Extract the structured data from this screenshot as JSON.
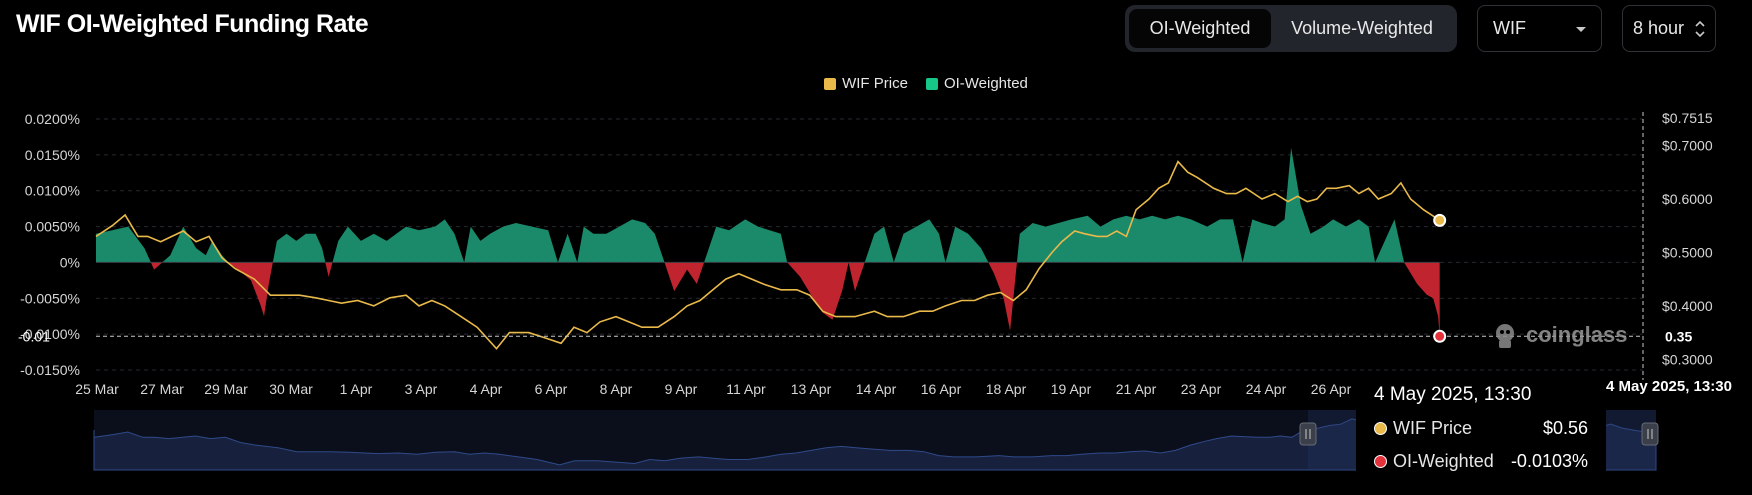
{
  "header": {
    "title": "WIF OI-Weighted Funding Rate",
    "weight_tabs": [
      "OI-Weighted",
      "Volume-Weighted"
    ],
    "active_tab": "OI-Weighted",
    "coin_select": "WIF",
    "interval_select": "8 hour"
  },
  "colors": {
    "price": "#e9b949",
    "positive": "#1a8a6b",
    "negative": "#c0252f",
    "highlight_red": "#e4323d"
  },
  "tooltip": {
    "date": "4 May 2025, 13:30",
    "rows": [
      {
        "label": "WIF Price",
        "value": "$0.56"
      },
      {
        "label": "OI-Weighted",
        "value": "-0.0103%"
      }
    ]
  },
  "crosshair": {
    "x_label": "4 May 2025, 13:30",
    "y_left_label": "-0.01",
    "y_right_label": "0.35"
  },
  "brand": "coinglass",
  "chart_data": {
    "type": "area",
    "title": "WIF OI-Weighted Funding Rate",
    "legend": [
      "WIF Price",
      "OI-Weighted"
    ],
    "legend_position": "top-center",
    "grid": true,
    "categories": [
      "25 Mar",
      "27 Mar",
      "29 Mar",
      "30 Mar",
      "1 Apr",
      "3 Apr",
      "4 Apr",
      "6 Apr",
      "8 Apr",
      "9 Apr",
      "11 Apr",
      "13 Apr",
      "14 Apr",
      "16 Apr",
      "18 Apr",
      "19 Apr",
      "21 Apr",
      "23 Apr",
      "24 Apr",
      "26 Apr"
    ],
    "y_left": {
      "ticks": [
        "0.0200%",
        "0.0150%",
        "0.0100%",
        "0.0050%",
        "0%",
        "-0.0050%",
        "-0.0100%",
        "-0.0150%"
      ],
      "range": [
        -0.015,
        0.02
      ]
    },
    "y_right": {
      "ticks": [
        "$0.7515",
        "$0.7000",
        "$0.6000",
        "$0.5000",
        "$0.4000",
        "$0.3000"
      ],
      "range": [
        0.28,
        0.7515
      ]
    },
    "series": [
      {
        "name": "OI-Weighted",
        "unit": "%",
        "axis": "left",
        "points": [
          [
            0,
            0.004
          ],
          [
            0.5,
            0.0045
          ],
          [
            1,
            0.005
          ],
          [
            1.5,
            0.002
          ],
          [
            1.8,
            -0.001
          ],
          [
            2.3,
            0.001
          ],
          [
            2.7,
            0.005
          ],
          [
            3.1,
            0.002
          ],
          [
            3.4,
            0.001
          ],
          [
            3.6,
            0.003
          ],
          [
            3.9,
            0.001
          ],
          [
            4.1,
            0.0
          ],
          [
            4.4,
            -0.001
          ],
          [
            4.8,
            -0.0025
          ],
          [
            5.1,
            -0.006
          ],
          [
            5.2,
            -0.0075
          ],
          [
            5.35,
            -0.003
          ],
          [
            5.6,
            0.003
          ],
          [
            5.9,
            0.004
          ],
          [
            6.2,
            0.003
          ],
          [
            6.5,
            0.004
          ],
          [
            6.8,
            0.004
          ],
          [
            7.0,
            0.002
          ],
          [
            7.2,
            -0.002
          ],
          [
            7.5,
            0.003
          ],
          [
            7.8,
            0.005
          ],
          [
            8.2,
            0.003
          ],
          [
            8.6,
            0.004
          ],
          [
            9.0,
            0.003
          ],
          [
            9.3,
            0.004
          ],
          [
            9.6,
            0.005
          ],
          [
            10.0,
            0.0045
          ],
          [
            10.5,
            0.005
          ],
          [
            10.8,
            0.006
          ],
          [
            11.1,
            0.004
          ],
          [
            11.4,
            0.0
          ],
          [
            11.6,
            0.005
          ],
          [
            11.9,
            0.003
          ],
          [
            12.2,
            0.004
          ],
          [
            12.6,
            0.005
          ],
          [
            13.0,
            0.0055
          ],
          [
            13.5,
            0.005
          ],
          [
            14.0,
            0.0045
          ],
          [
            14.3,
            0.0
          ],
          [
            14.6,
            0.004
          ],
          [
            14.9,
            0.0
          ],
          [
            15.1,
            0.005
          ],
          [
            15.4,
            0.004
          ],
          [
            15.8,
            0.004
          ],
          [
            16.2,
            0.005
          ],
          [
            16.6,
            0.006
          ],
          [
            17.0,
            0.0055
          ],
          [
            17.3,
            0.004
          ],
          [
            17.6,
            0.0
          ],
          [
            17.9,
            -0.004
          ],
          [
            18.3,
            -0.001
          ],
          [
            18.6,
            -0.003
          ],
          [
            19.2,
            0.005
          ],
          [
            19.6,
            0.0045
          ],
          [
            20.1,
            0.006
          ],
          [
            20.5,
            0.005
          ],
          [
            21.2,
            0.004
          ],
          [
            21.4,
            0.0
          ],
          [
            21.8,
            -0.002
          ],
          [
            22.2,
            -0.005
          ],
          [
            22.5,
            -0.007
          ],
          [
            22.8,
            -0.008
          ],
          [
            23.1,
            -0.004
          ],
          [
            23.3,
            0.0
          ],
          [
            23.5,
            -0.004
          ],
          [
            23.8,
            0.0
          ],
          [
            24.1,
            0.004
          ],
          [
            24.4,
            0.005
          ],
          [
            24.7,
            0.0
          ],
          [
            25.0,
            0.004
          ],
          [
            25.4,
            0.005
          ],
          [
            25.8,
            0.006
          ],
          [
            26.1,
            0.004
          ],
          [
            26.3,
            0.0
          ],
          [
            26.6,
            0.005
          ],
          [
            27.0,
            0.004
          ],
          [
            27.4,
            0.002
          ],
          [
            27.8,
            -0.0015
          ],
          [
            28.1,
            -0.005
          ],
          [
            28.3,
            -0.0095
          ],
          [
            28.6,
            0.004
          ],
          [
            29.0,
            0.0055
          ],
          [
            29.4,
            0.005
          ],
          [
            29.8,
            0.0055
          ],
          [
            30.2,
            0.006
          ],
          [
            30.7,
            0.0065
          ],
          [
            31.1,
            0.005
          ],
          [
            31.5,
            0.006
          ],
          [
            31.9,
            0.0065
          ],
          [
            32.3,
            0.006
          ],
          [
            32.7,
            0.0065
          ],
          [
            33.1,
            0.006
          ],
          [
            33.5,
            0.0065
          ],
          [
            33.9,
            0.006
          ],
          [
            34.4,
            0.005
          ],
          [
            34.8,
            0.006
          ],
          [
            35.2,
            0.006
          ],
          [
            35.5,
            0.0
          ],
          [
            35.8,
            0.006
          ],
          [
            36.1,
            0.0055
          ],
          [
            36.5,
            0.005
          ],
          [
            36.8,
            0.006
          ],
          [
            37.0,
            0.016
          ],
          [
            37.3,
            0.008
          ],
          [
            37.6,
            0.004
          ],
          [
            38.0,
            0.005
          ],
          [
            38.3,
            0.006
          ],
          [
            38.7,
            0.005
          ],
          [
            39.1,
            0.006
          ],
          [
            39.4,
            0.005
          ],
          [
            39.6,
            0.0
          ],
          [
            39.9,
            0.003
          ],
          [
            40.2,
            0.006
          ],
          [
            40.5,
            0.0
          ],
          [
            40.9,
            -0.003
          ],
          [
            41.2,
            -0.0045
          ],
          [
            41.4,
            -0.005
          ],
          [
            41.55,
            -0.0075
          ],
          [
            41.6,
            -0.0103
          ]
        ]
      },
      {
        "name": "WIF Price",
        "unit": "USD",
        "axis": "right",
        "points": [
          [
            0,
            0.53
          ],
          [
            0.5,
            0.55
          ],
          [
            0.9,
            0.57
          ],
          [
            1.3,
            0.53
          ],
          [
            1.6,
            0.53
          ],
          [
            2.0,
            0.52
          ],
          [
            2.7,
            0.54
          ],
          [
            3.1,
            0.52
          ],
          [
            3.5,
            0.53
          ],
          [
            3.9,
            0.49
          ],
          [
            4.3,
            0.47
          ],
          [
            4.9,
            0.45
          ],
          [
            5.4,
            0.42
          ],
          [
            5.9,
            0.42
          ],
          [
            6.3,
            0.42
          ],
          [
            6.8,
            0.415
          ],
          [
            7.2,
            0.41
          ],
          [
            7.6,
            0.405
          ],
          [
            8.1,
            0.41
          ],
          [
            8.6,
            0.4
          ],
          [
            9.1,
            0.415
          ],
          [
            9.6,
            0.42
          ],
          [
            10.0,
            0.4
          ],
          [
            10.4,
            0.41
          ],
          [
            10.8,
            0.4
          ],
          [
            11.3,
            0.38
          ],
          [
            11.8,
            0.36
          ],
          [
            12.4,
            0.32
          ],
          [
            12.8,
            0.35
          ],
          [
            13.4,
            0.35
          ],
          [
            13.9,
            0.34
          ],
          [
            14.4,
            0.33
          ],
          [
            14.8,
            0.36
          ],
          [
            15.2,
            0.35
          ],
          [
            15.6,
            0.37
          ],
          [
            16.1,
            0.38
          ],
          [
            16.5,
            0.37
          ],
          [
            16.9,
            0.36
          ],
          [
            17.4,
            0.36
          ],
          [
            17.9,
            0.38
          ],
          [
            18.3,
            0.4
          ],
          [
            18.7,
            0.41
          ],
          [
            19.1,
            0.43
          ],
          [
            19.5,
            0.45
          ],
          [
            19.9,
            0.46
          ],
          [
            20.3,
            0.45
          ],
          [
            20.7,
            0.44
          ],
          [
            21.2,
            0.43
          ],
          [
            21.7,
            0.43
          ],
          [
            22.1,
            0.42
          ],
          [
            22.5,
            0.39
          ],
          [
            22.9,
            0.38
          ],
          [
            23.5,
            0.38
          ],
          [
            24.1,
            0.39
          ],
          [
            24.5,
            0.38
          ],
          [
            25.0,
            0.38
          ],
          [
            25.5,
            0.39
          ],
          [
            25.9,
            0.39
          ],
          [
            26.3,
            0.4
          ],
          [
            26.8,
            0.41
          ],
          [
            27.2,
            0.41
          ],
          [
            27.6,
            0.42
          ],
          [
            28.0,
            0.425
          ],
          [
            28.4,
            0.41
          ],
          [
            28.8,
            0.43
          ],
          [
            29.2,
            0.47
          ],
          [
            29.6,
            0.5
          ],
          [
            29.9,
            0.52
          ],
          [
            30.3,
            0.54
          ],
          [
            30.6,
            0.535
          ],
          [
            31.0,
            0.53
          ],
          [
            31.3,
            0.53
          ],
          [
            31.6,
            0.54
          ],
          [
            31.9,
            0.53
          ],
          [
            32.2,
            0.58
          ],
          [
            32.6,
            0.6
          ],
          [
            32.9,
            0.62
          ],
          [
            33.2,
            0.63
          ],
          [
            33.5,
            0.67
          ],
          [
            33.8,
            0.65
          ],
          [
            34.1,
            0.64
          ],
          [
            34.6,
            0.62
          ],
          [
            35.0,
            0.61
          ],
          [
            35.3,
            0.61
          ],
          [
            35.6,
            0.62
          ],
          [
            36.1,
            0.6
          ],
          [
            36.5,
            0.61
          ],
          [
            36.9,
            0.595
          ],
          [
            37.2,
            0.605
          ],
          [
            37.5,
            0.595
          ],
          [
            37.8,
            0.6
          ],
          [
            38.1,
            0.62
          ],
          [
            38.4,
            0.62
          ],
          [
            38.8,
            0.625
          ],
          [
            39.1,
            0.61
          ],
          [
            39.4,
            0.62
          ],
          [
            39.7,
            0.6
          ],
          [
            40.1,
            0.61
          ],
          [
            40.4,
            0.63
          ],
          [
            40.7,
            0.6
          ],
          [
            41.1,
            0.58
          ],
          [
            41.6,
            0.56
          ]
        ]
      }
    ],
    "highlight": {
      "date": "4 May 2025, 13:30",
      "oi_weighted": -0.0103,
      "price": 0.56
    }
  }
}
